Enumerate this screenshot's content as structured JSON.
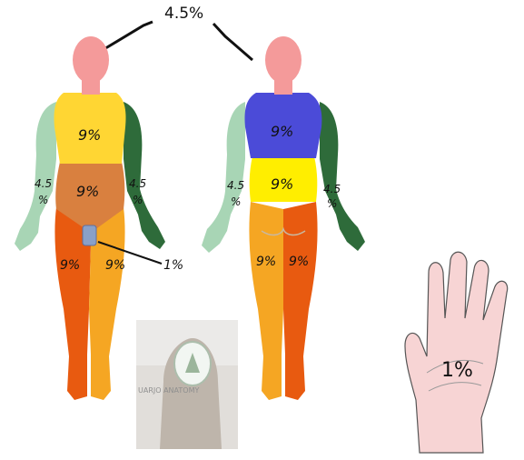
{
  "diagram": {
    "top_label": "4.5%",
    "front_figure": {
      "chest": "9%",
      "abdomen": "9%",
      "right_arm": "4.5",
      "right_arm_suffix": "%",
      "left_arm": "4.5",
      "left_arm_suffix": "%",
      "right_leg": "9%",
      "left_leg": "9%",
      "genital": "1%"
    },
    "back_figure": {
      "upper_back": "9%",
      "lower_back": "9%",
      "right_arm": "4.5",
      "right_arm_suffix": "%",
      "left_arm": "4.5",
      "left_arm_suffix": "%",
      "right_leg": "9%",
      "left_leg": "9%"
    },
    "palm": {
      "label": "1%"
    },
    "watermark": {
      "text": "UARJO ANATOMY"
    },
    "colors": {
      "head": "#f49a9a",
      "chest": "#ffd633",
      "abdomen": "#d9803f",
      "arm_light": "#a8d5b5",
      "arm_dark": "#2e6b3a",
      "leg_orange": "#f07a10",
      "leg_red": "#e85a10",
      "leg_light": "#f5a623",
      "back_blue": "#4b4bd8",
      "back_yellow": "#ffee00",
      "genital": "#8aa0c8",
      "palm": "#f7d4d4"
    }
  }
}
